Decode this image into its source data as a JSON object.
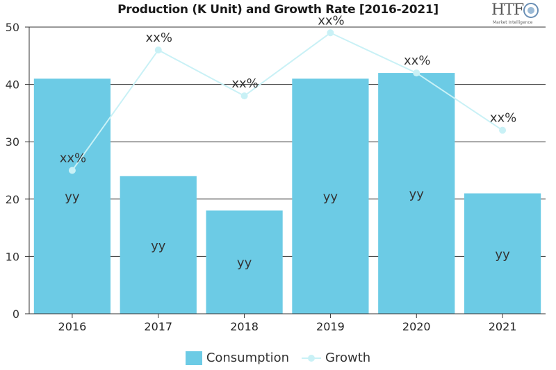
{
  "logo": {
    "text": "HTF",
    "subtext": "Market Intelligence"
  },
  "colors": {
    "bar": "#6ccbe5",
    "line": "#c9f1f6",
    "axis": "#333333",
    "grid": "#333333"
  },
  "chart_data": {
    "type": "bar",
    "title": "Production (K Unit) and Growth Rate [2016-2021]",
    "categories": [
      "2016",
      "2017",
      "2018",
      "2019",
      "2020",
      "2021"
    ],
    "ylim": [
      0,
      50
    ],
    "yticks": [
      0,
      10,
      20,
      30,
      40,
      50
    ],
    "grid": true,
    "legend_position": "bottom",
    "series": [
      {
        "name": "Consumption",
        "kind": "bar",
        "values": [
          41,
          24,
          18,
          41,
          42,
          21
        ],
        "labels": [
          "yy",
          "yy",
          "yy",
          "yy",
          "yy",
          "yy"
        ]
      },
      {
        "name": "Growth",
        "kind": "line",
        "values": [
          25,
          46,
          38,
          49,
          42,
          32
        ],
        "labels": [
          "xx%",
          "xx%",
          "xx%",
          "xx%",
          "xx%",
          "xx%"
        ]
      }
    ]
  }
}
